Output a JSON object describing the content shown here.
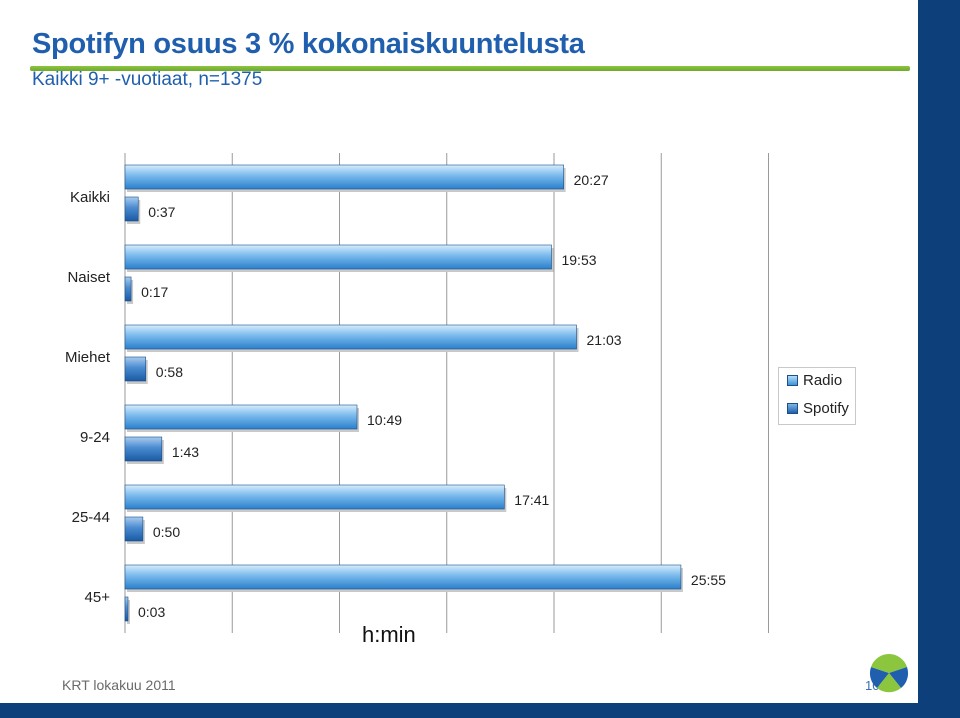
{
  "slide": {
    "title": "Spotifyn osuus 3 % kokonaiskuuntelusta",
    "subtitle": "Kaikki 9+ -vuotiaat, n=1375",
    "footer": "KRT lokakuu 2011",
    "page_number": "10"
  },
  "colors": {
    "accent_blue": "#1f5fae",
    "rule_green": "#8cc63f",
    "stripe_navy": "#0d3f7a",
    "bar_radio": "#3c93d8",
    "bar_spotify": "#1e62ab"
  },
  "chart_data": {
    "type": "bar",
    "orientation": "horizontal",
    "categories": [
      "Kaikki",
      "Naiset",
      "Miehet",
      "9-24",
      "25-44",
      "45+"
    ],
    "series": [
      {
        "name": "Radio",
        "values": [
          1227,
          1193,
          1263,
          649,
          1061,
          1555
        ],
        "labels": [
          "20:27",
          "19:53",
          "21:03",
          "10:49",
          "17:41",
          "25:55"
        ]
      },
      {
        "name": "Spotify",
        "values": [
          37,
          17,
          58,
          103,
          50,
          3
        ],
        "labels": [
          "0:37",
          "0:17",
          "0:58",
          "1:43",
          "0:50",
          "0:03"
        ]
      }
    ],
    "unit_label": "h:min",
    "value_unit": "minutes",
    "xlim": [
      0,
      1800
    ],
    "grid": true,
    "legend_position": "right"
  }
}
